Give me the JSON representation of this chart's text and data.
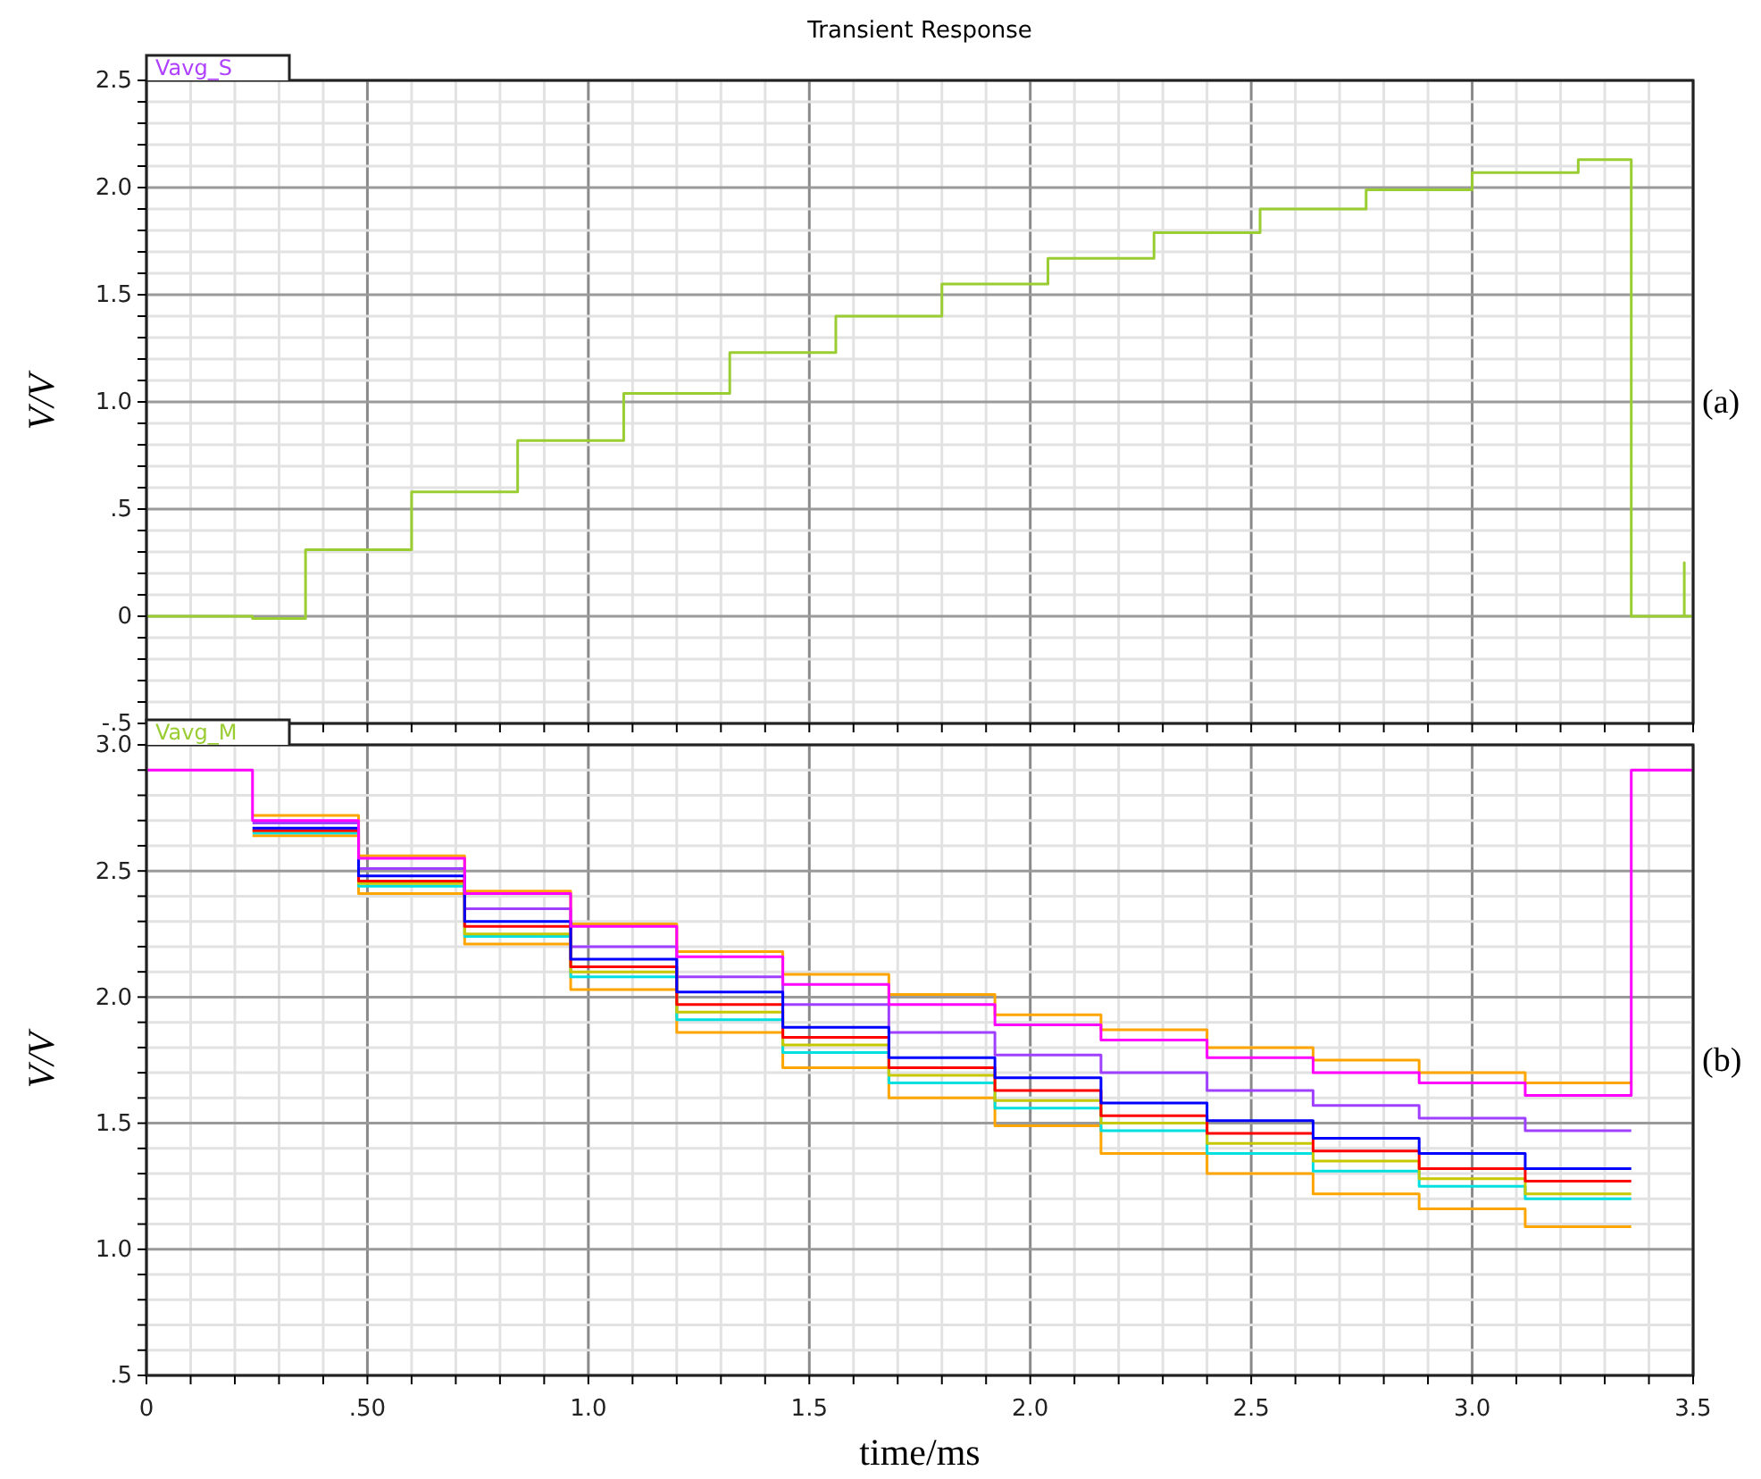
{
  "chart_data": [
    {
      "type": "step",
      "title": "Transient Response",
      "ylabel": "V/V",
      "annotations": [
        "Vavg_S",
        "(a)"
      ],
      "grid": true,
      "tick_labels": "y",
      "xlim": [
        0,
        3.5
      ],
      "ylim": [
        -0.5,
        2.5
      ],
      "xticks": [
        0,
        {
          "value": 0.1,
          "label": null
        },
        {
          "value": 0.2,
          "label": null
        },
        {
          "value": 0.3,
          "label": null
        },
        {
          "value": 0.4,
          "label": null
        },
        0.5,
        {
          "value": 0.6,
          "label": null
        },
        {
          "value": 0.7,
          "label": null
        },
        {
          "value": 0.8,
          "label": null
        },
        {
          "value": 0.9,
          "label": null
        },
        1,
        {
          "value": 1.1,
          "label": null
        },
        {
          "value": 1.2,
          "label": null
        },
        {
          "value": 1.3,
          "label": null
        },
        {
          "value": 1.4,
          "label": null
        },
        1.5,
        {
          "value": 1.6,
          "label": null
        },
        {
          "value": 1.7,
          "label": null
        },
        {
          "value": 1.8,
          "label": null
        },
        {
          "value": 1.9,
          "label": null
        },
        2,
        {
          "value": 2.1,
          "label": null
        },
        {
          "value": 2.2,
          "label": null
        },
        {
          "value": 2.3,
          "label": null
        },
        {
          "value": 2.4,
          "label": null
        },
        2.5,
        {
          "value": 2.6,
          "label": null
        },
        {
          "value": 2.7,
          "label": null
        },
        {
          "value": 2.8,
          "label": null
        },
        {
          "value": 2.9,
          "label": null
        },
        3,
        {
          "value": 3.1,
          "label": null
        },
        {
          "value": 3.2,
          "label": null
        },
        {
          "value": 3.3,
          "label": null
        },
        {
          "value": 3.4,
          "label": null
        },
        3.5
      ],
      "yticks": [
        {
          "value": -0.5,
          "label": "-.5"
        },
        {
          "value": -0.4,
          "label": null
        },
        {
          "value": -0.3,
          "label": null
        },
        {
          "value": -0.2,
          "label": null
        },
        {
          "value": -0.1,
          "label": null
        },
        0,
        {
          "value": 0.1,
          "label": null
        },
        {
          "value": 0.2,
          "label": null
        },
        {
          "value": 0.3,
          "label": null
        },
        {
          "value": 0.4,
          "label": null
        },
        {
          "value": 0.5,
          "label": ".5"
        },
        {
          "value": 0.6,
          "label": null
        },
        {
          "value": 0.7,
          "label": null
        },
        {
          "value": 0.8,
          "label": null
        },
        {
          "value": 0.9,
          "label": null
        },
        {
          "value": 1,
          "label": "1.0"
        },
        {
          "value": 1.1,
          "label": null
        },
        {
          "value": 1.2,
          "label": null
        },
        {
          "value": 1.3,
          "label": null
        },
        {
          "value": 1.4,
          "label": null
        },
        1.5,
        {
          "value": 1.6,
          "label": null
        },
        {
          "value": 1.7,
          "label": null
        },
        {
          "value": 1.8,
          "label": null
        },
        {
          "value": 1.9,
          "label": null
        },
        {
          "value": 2,
          "label": "2.0"
        },
        {
          "value": 2.1,
          "label": null
        },
        {
          "value": 2.2,
          "label": null
        },
        {
          "value": 2.3,
          "label": null
        },
        {
          "value": 2.4,
          "label": null
        },
        2.5
      ],
      "series": [
        {
          "color": "#9acd32",
          "x": [
            0,
            0.24,
            0.36,
            0.6,
            0.84,
            1.08,
            1.32,
            1.56,
            1.8,
            2.04,
            2.28,
            2.52,
            2.76,
            3.0,
            3.24,
            3.36,
            3.48,
            3.48,
            3.5
          ],
          "values": [
            0,
            -0.01,
            0.31,
            0.58,
            0.82,
            1.04,
            1.23,
            1.4,
            1.55,
            1.67,
            1.79,
            1.9,
            1.99,
            2.07,
            2.13,
            0,
            0.25,
            0,
            0
          ]
        }
      ]
    },
    {
      "type": "step",
      "ylabel": "V/V",
      "xlabel": "time/ms",
      "annotations": [
        "Vavg_M",
        "(b)"
      ],
      "grid": true,
      "xlim": [
        0,
        3.5
      ],
      "ylim": [
        0.5,
        3.0
      ],
      "xticks": [
        0,
        {
          "value": 0.1,
          "label": null
        },
        {
          "value": 0.2,
          "label": null
        },
        {
          "value": 0.3,
          "label": null
        },
        {
          "value": 0.4,
          "label": null
        },
        {
          "value": 0.5,
          "label": ".50"
        },
        {
          "value": 0.6,
          "label": null
        },
        {
          "value": 0.7,
          "label": null
        },
        {
          "value": 0.8,
          "label": null
        },
        {
          "value": 0.9,
          "label": null
        },
        {
          "value": 1,
          "label": "1.0"
        },
        {
          "value": 1.1,
          "label": null
        },
        {
          "value": 1.2,
          "label": null
        },
        {
          "value": 1.3,
          "label": null
        },
        {
          "value": 1.4,
          "label": null
        },
        1.5,
        {
          "value": 1.6,
          "label": null
        },
        {
          "value": 1.7,
          "label": null
        },
        {
          "value": 1.8,
          "label": null
        },
        {
          "value": 1.9,
          "label": null
        },
        {
          "value": 2,
          "label": "2.0"
        },
        {
          "value": 2.1,
          "label": null
        },
        {
          "value": 2.2,
          "label": null
        },
        {
          "value": 2.3,
          "label": null
        },
        {
          "value": 2.4,
          "label": null
        },
        2.5,
        {
          "value": 2.6,
          "label": null
        },
        {
          "value": 2.7,
          "label": null
        },
        {
          "value": 2.8,
          "label": null
        },
        {
          "value": 2.9,
          "label": null
        },
        {
          "value": 3,
          "label": "3.0"
        },
        {
          "value": 3.1,
          "label": null
        },
        {
          "value": 3.2,
          "label": null
        },
        {
          "value": 3.3,
          "label": null
        },
        {
          "value": 3.4,
          "label": null
        },
        3.5
      ],
      "yticks": [
        {
          "value": 0.5,
          "label": ".5"
        },
        {
          "value": 0.6,
          "label": null
        },
        {
          "value": 0.7,
          "label": null
        },
        {
          "value": 0.8,
          "label": null
        },
        {
          "value": 0.9,
          "label": null
        },
        {
          "value": 1,
          "label": "1.0"
        },
        {
          "value": 1.1,
          "label": null
        },
        {
          "value": 1.2,
          "label": null
        },
        {
          "value": 1.3,
          "label": null
        },
        {
          "value": 1.4,
          "label": null
        },
        1.5,
        {
          "value": 1.6,
          "label": null
        },
        {
          "value": 1.7,
          "label": null
        },
        {
          "value": 1.8,
          "label": null
        },
        {
          "value": 1.9,
          "label": null
        },
        {
          "value": 2,
          "label": "2.0"
        },
        {
          "value": 2.1,
          "label": null
        },
        {
          "value": 2.2,
          "label": null
        },
        {
          "value": 2.3,
          "label": null
        },
        {
          "value": 2.4,
          "label": null
        },
        2.5,
        {
          "value": 2.6,
          "label": null
        },
        {
          "value": 2.7,
          "label": null
        },
        {
          "value": 2.8,
          "label": null
        },
        {
          "value": 2.9,
          "label": null
        },
        {
          "value": 3,
          "label": "3.0"
        }
      ],
      "series": [
        {
          "color": "#ffa500",
          "x": [
            0.24,
            0.48,
            0.72,
            0.96,
            1.2,
            1.44,
            1.68,
            1.92,
            2.16,
            2.4,
            2.64,
            2.88,
            3.12,
            3.36
          ],
          "values": [
            2.72,
            2.56,
            2.42,
            2.29,
            2.18,
            2.09,
            2.01,
            1.93,
            1.87,
            1.8,
            1.75,
            1.7,
            1.66,
            1.66
          ]
        },
        {
          "color": "#ffa500",
          "x": [
            0.24,
            0.48,
            0.72,
            0.96,
            1.2,
            1.44,
            1.68,
            1.92,
            2.16,
            2.4,
            2.64,
            2.88,
            3.12,
            3.36
          ],
          "values": [
            2.64,
            2.41,
            2.21,
            2.03,
            1.86,
            1.72,
            1.6,
            1.49,
            1.38,
            1.3,
            1.22,
            1.16,
            1.09,
            1.09
          ]
        },
        {
          "color": "#a040ff",
          "x": [
            0.24,
            0.48,
            0.72,
            0.96,
            1.2,
            1.44,
            1.68,
            1.92,
            2.16,
            2.4,
            2.64,
            2.88,
            3.12,
            3.36
          ],
          "values": [
            2.69,
            2.51,
            2.35,
            2.2,
            2.08,
            1.97,
            1.86,
            1.77,
            1.7,
            1.63,
            1.57,
            1.52,
            1.47,
            1.47
          ]
        },
        {
          "color": "#00e0e0",
          "x": [
            0.24,
            0.48,
            0.72,
            0.96,
            1.2,
            1.44,
            1.68,
            1.92,
            2.16,
            2.4,
            2.64,
            2.88,
            3.12,
            3.36
          ],
          "values": [
            2.65,
            2.44,
            2.24,
            2.08,
            1.91,
            1.78,
            1.66,
            1.56,
            1.47,
            1.38,
            1.31,
            1.25,
            1.2,
            1.2
          ]
        },
        {
          "color": "#c8c800",
          "x": [
            0.24,
            0.48,
            0.72,
            0.96,
            1.2,
            1.44,
            1.68,
            1.92,
            2.16,
            2.4,
            2.64,
            2.88,
            3.12,
            3.36
          ],
          "values": [
            2.66,
            2.45,
            2.25,
            2.1,
            1.94,
            1.81,
            1.69,
            1.59,
            1.5,
            1.42,
            1.35,
            1.28,
            1.22,
            1.22
          ]
        },
        {
          "color": "#ff0000",
          "x": [
            0.24,
            0.48,
            0.72,
            0.96,
            1.2,
            1.44,
            1.68,
            1.92,
            2.16,
            2.4,
            2.64,
            2.88,
            3.12,
            3.36
          ],
          "values": [
            2.66,
            2.46,
            2.28,
            2.12,
            1.97,
            1.84,
            1.72,
            1.63,
            1.53,
            1.46,
            1.39,
            1.32,
            1.27,
            1.27
          ]
        },
        {
          "color": "#0000ff",
          "x": [
            0.24,
            0.48,
            0.72,
            0.96,
            1.2,
            1.44,
            1.68,
            1.92,
            2.16,
            2.4,
            2.64,
            2.88,
            3.12,
            3.36
          ],
          "values": [
            2.67,
            2.48,
            2.3,
            2.15,
            2.02,
            1.88,
            1.76,
            1.68,
            1.58,
            1.51,
            1.44,
            1.38,
            1.32,
            1.32
          ]
        },
        {
          "color": "#ff00ff",
          "x": [
            0,
            0.24,
            0.48,
            0.72,
            0.96,
            1.2,
            1.44,
            1.68,
            1.92,
            2.16,
            2.4,
            2.64,
            2.88,
            3.12,
            3.36,
            3.5
          ],
          "values": [
            2.9,
            2.7,
            2.55,
            2.41,
            2.28,
            2.16,
            2.05,
            1.97,
            1.89,
            1.83,
            1.76,
            1.7,
            1.66,
            1.61,
            2.9,
            2.9
          ]
        }
      ]
    }
  ]
}
